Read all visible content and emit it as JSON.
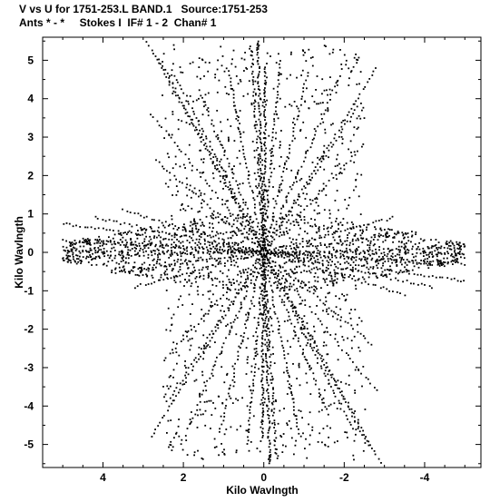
{
  "header": {
    "line1": "V vs U for 1751-253.L BAND.1   Source:1751-253",
    "line2": "Ants * - *     Stokes I  IF# 1 - 2  Chan# 1"
  },
  "chart_data": {
    "type": "scatter",
    "title": "V vs U for 1751-253.L BAND.1   Source:1751-253",
    "subtitle": "Ants * - *     Stokes I  IF# 1 - 2  Chan# 1",
    "xlabel": "Kilo Wavlngth",
    "ylabel": "Kilo Wavlngth",
    "xlim": [
      5.5,
      -5.4
    ],
    "ylim": [
      -5.6,
      5.6
    ],
    "x_reversed": true,
    "xticks": [
      4,
      2,
      0,
      -2,
      -4
    ],
    "yticks": [
      5,
      4,
      3,
      2,
      1,
      0,
      -1,
      -2,
      -3,
      -4,
      -5
    ],
    "xtick_labels": [
      "4",
      "2",
      "0",
      "-2",
      "-4"
    ],
    "ytick_labels": [
      "5",
      "4",
      "3",
      "2",
      "1",
      "0",
      "-1",
      "-2",
      "-3",
      "-4",
      "-5"
    ],
    "grid": false,
    "marker_color": "#000000",
    "description_of_data": "Symmetric u-v coverage of a Y-shaped array: radial point tracks, hexagonal envelope",
    "tracks": [
      {
        "u": 2.9,
        "v": 5.45,
        "n": 60
      },
      {
        "u": 2.6,
        "v": 5.0,
        "n": 55
      },
      {
        "u": 2.2,
        "v": 4.6,
        "n": 50
      },
      {
        "u": 1.6,
        "v": 4.2,
        "n": 45
      },
      {
        "u": 0.9,
        "v": 4.8,
        "n": 50
      },
      {
        "u": 0.3,
        "v": 5.2,
        "n": 55
      },
      {
        "u": -0.4,
        "v": 5.0,
        "n": 50
      },
      {
        "u": -1.1,
        "v": 4.7,
        "n": 45
      },
      {
        "u": -1.9,
        "v": 4.6,
        "n": 45
      },
      {
        "u": -2.8,
        "v": 4.8,
        "n": 50
      },
      {
        "u": -2.4,
        "v": 3.9,
        "n": 40
      },
      {
        "u": 2.8,
        "v": 3.6,
        "n": 40
      },
      {
        "u": 2.7,
        "v": 2.4,
        "n": 35
      },
      {
        "u": -2.5,
        "v": 2.8,
        "n": 35
      },
      {
        "u": 5.0,
        "v": 0.75,
        "n": 55
      },
      {
        "u": 4.5,
        "v": 0.35,
        "n": 45
      },
      {
        "u": 4.2,
        "v": 0.9,
        "n": 45
      },
      {
        "u": 3.5,
        "v": 1.1,
        "n": 40
      },
      {
        "u": 5.0,
        "v": 0.05,
        "n": 50
      },
      {
        "u": -5.0,
        "v": -0.3,
        "n": 50
      },
      {
        "u": -4.6,
        "v": 0.1,
        "n": 45
      },
      {
        "u": -3.8,
        "v": 0.55,
        "n": 40
      },
      {
        "u": -3.2,
        "v": 0.9,
        "n": 40
      },
      {
        "u": 0.15,
        "v": 5.5,
        "n": 90
      },
      {
        "u": -0.05,
        "v": 4.9,
        "n": 80
      }
    ]
  }
}
